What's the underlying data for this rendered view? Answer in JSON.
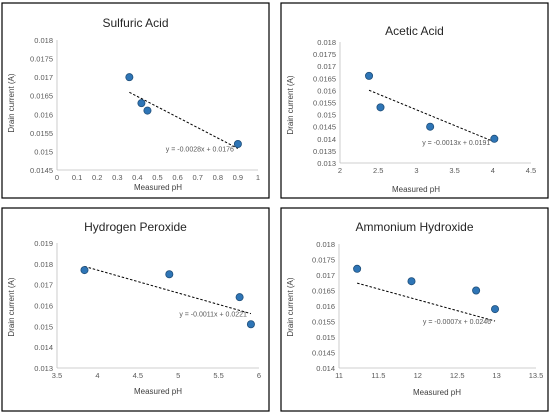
{
  "chart_data": [
    {
      "type": "scatter",
      "title": "Sulfuric Acid",
      "xlabel": "Measured pH",
      "ylabel": "Drain current (A)",
      "xlim": [
        0,
        1
      ],
      "ylim": [
        0.0145,
        0.018
      ],
      "x_ticks": [
        "0",
        "0.1",
        "0.2",
        "0.3",
        "0.4",
        "0.5",
        "0.6",
        "0.7",
        "0.8",
        "0.9",
        "1"
      ],
      "y_ticks": [
        "0.0145",
        "0.015",
        "0.0155",
        "0.016",
        "0.0165",
        "0.017",
        "0.0175",
        "0.018"
      ],
      "points": [
        {
          "x": 0.36,
          "y": 0.017
        },
        {
          "x": 0.42,
          "y": 0.0163
        },
        {
          "x": 0.45,
          "y": 0.0161
        },
        {
          "x": 0.9,
          "y": 0.0152
        }
      ],
      "trendline": {
        "x0": 0.36,
        "x1": 0.9,
        "slope": -0.0028,
        "intercept": 0.0176
      },
      "equation": "y = -0.0028x + 0.0176",
      "grid": false,
      "marker_color": "#2E75B6"
    },
    {
      "type": "scatter",
      "title": "Acetic Acid",
      "xlabel": "Measured pH",
      "ylabel": "Drain current (A)",
      "xlim": [
        2,
        4.5
      ],
      "ylim": [
        0.013,
        0.018
      ],
      "x_ticks": [
        "2",
        "2.5",
        "3",
        "3.5",
        "4",
        "4.5"
      ],
      "y_ticks": [
        "0.013",
        "0.0135",
        "0.014",
        "0.0145",
        "0.015",
        "0.0155",
        "0.016",
        "0.0165",
        "0.017",
        "0.0175",
        "0.018"
      ],
      "points": [
        {
          "x": 2.38,
          "y": 0.0166
        },
        {
          "x": 2.53,
          "y": 0.0153
        },
        {
          "x": 3.18,
          "y": 0.0145
        },
        {
          "x": 4.02,
          "y": 0.014
        }
      ],
      "trendline": {
        "x0": 2.38,
        "x1": 4.02,
        "slope": -0.0013,
        "intercept": 0.0191
      },
      "equation": "y = -0.0013x + 0.0191",
      "grid": false,
      "marker_color": "#2E75B6"
    },
    {
      "type": "scatter",
      "title": "Hydrogen Peroxide",
      "xlabel": "Measured pH",
      "ylabel": "Drain current (A)",
      "xlim": [
        3.5,
        6
      ],
      "ylim": [
        0.013,
        0.019
      ],
      "x_ticks": [
        "3.5",
        "4",
        "4.5",
        "5",
        "5.5",
        "6"
      ],
      "y_ticks": [
        "0.013",
        "0.014",
        "0.015",
        "0.016",
        "0.017",
        "0.018",
        "0.019"
      ],
      "points": [
        {
          "x": 3.84,
          "y": 0.0177
        },
        {
          "x": 4.89,
          "y": 0.0175
        },
        {
          "x": 5.76,
          "y": 0.0164
        },
        {
          "x": 5.9,
          "y": 0.0151
        }
      ],
      "trendline": {
        "x0": 3.84,
        "x1": 5.9,
        "slope": -0.0011,
        "intercept": 0.0221
      },
      "equation": "y = -0.0011x + 0.0221",
      "grid": false,
      "marker_color": "#2E75B6"
    },
    {
      "type": "scatter",
      "title": "Ammonium Hydroxide",
      "xlabel": "Measured pH",
      "ylabel": "Drain current (A)",
      "xlim": [
        11,
        13.5
      ],
      "ylim": [
        0.014,
        0.018
      ],
      "x_ticks": [
        "11",
        "11.5",
        "12",
        "12.5",
        "13",
        "13.5"
      ],
      "y_ticks": [
        "0.014",
        "0.0145",
        "0.015",
        "0.0155",
        "0.016",
        "0.0165",
        "0.017",
        "0.0175",
        "0.018"
      ],
      "points": [
        {
          "x": 11.23,
          "y": 0.0172
        },
        {
          "x": 11.92,
          "y": 0.0168
        },
        {
          "x": 12.74,
          "y": 0.0165
        },
        {
          "x": 12.98,
          "y": 0.0159
        }
      ],
      "trendline": {
        "x0": 11.23,
        "x1": 12.98,
        "slope": -0.0007,
        "intercept": 0.0246
      },
      "equation": "y = -0.0007x + 0.0246",
      "grid": false,
      "marker_color": "#2E75B6"
    }
  ]
}
